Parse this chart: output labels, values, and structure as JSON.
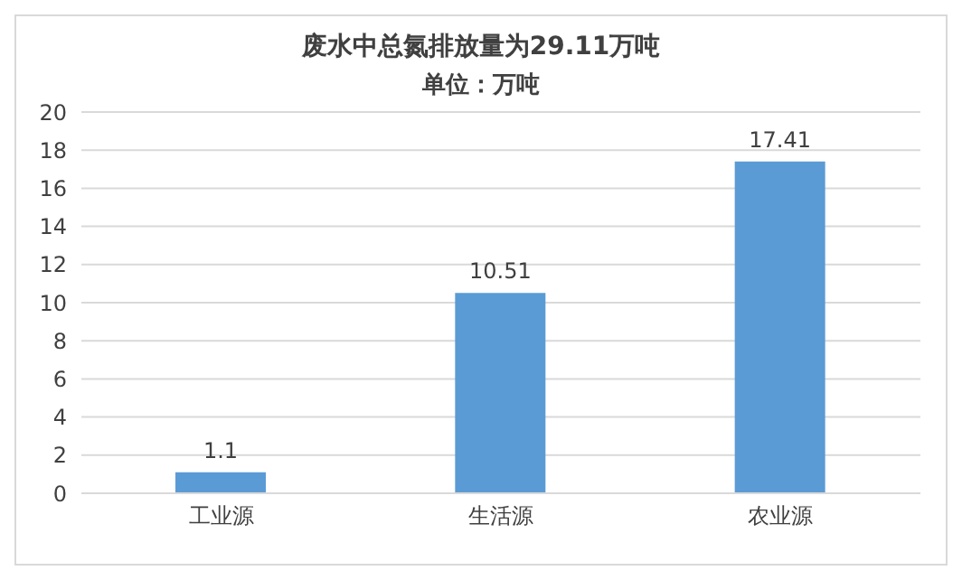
{
  "chart_data": {
    "type": "bar",
    "title": "废水中总氮排放量为29.11万吨",
    "subtitle": "单位：万吨",
    "categories": [
      "工业源",
      "生活源",
      "农业源"
    ],
    "values": [
      1.1,
      10.51,
      17.41
    ],
    "color": "#5b9bd5",
    "ylim": [
      0,
      20
    ],
    "yticks": [
      0,
      2,
      4,
      6,
      8,
      10,
      12,
      14,
      16,
      18,
      20
    ],
    "grid": "y",
    "data_labels": true,
    "legend": false
  }
}
